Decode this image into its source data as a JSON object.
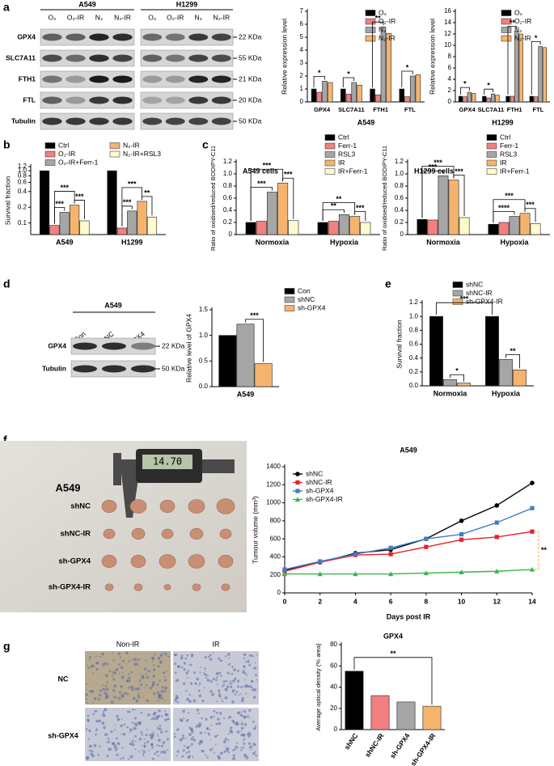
{
  "panel_labels": [
    "a",
    "b",
    "c",
    "d",
    "e",
    "f",
    "g"
  ],
  "blot_a": {
    "cell_lines": [
      "A549",
      "H1299"
    ],
    "lanes": [
      "O₂",
      "O₂-IR",
      "N₂",
      "N₂-IR"
    ],
    "rows": [
      "GPX4",
      "SLC7A11",
      "FTH1",
      "FTL",
      "Tubulin"
    ],
    "sizes": [
      "22 KDa",
      "55 KDa",
      "21 KDa",
      "20 KDa",
      "50 KDa"
    ]
  },
  "blot_d": {
    "cell_line": "A549",
    "lanes": [
      "Con",
      "shNC",
      "sh-GPX4"
    ],
    "rows": [
      "GPX4",
      "Tubulin"
    ],
    "sizes": [
      "22 KDa",
      "50 KDa"
    ]
  },
  "photo_f": {
    "caliper_reading": "14.70",
    "cell_line": "A549",
    "rows": [
      "shNC",
      "shNC-IR",
      "sh-GPX4",
      "sh-GPX4-IR"
    ]
  },
  "ihc_g": {
    "columns": [
      "Non-IR",
      "IR"
    ],
    "rows": [
      "NC",
      "sh-GPX4"
    ]
  },
  "chart_data": [
    {
      "type": "bar",
      "x_label": "A549",
      "y_label": "Relative expression level",
      "categories": [
        "GPX4",
        "SLC7A11",
        "FTH1",
        "FTL"
      ],
      "series": [
        {
          "name": "O₂",
          "color": "#000000",
          "values": [
            1,
            1,
            1,
            1
          ]
        },
        {
          "name": "O₂-IR",
          "color": "#f28080",
          "values": [
            0.75,
            0.6,
            0.55,
            0.4
          ]
        },
        {
          "name": "N₂",
          "color": "#a6a6a6",
          "values": [
            1.6,
            1.5,
            5.8,
            2.0
          ]
        },
        {
          "name": "N₂-IR",
          "color": "#f5b46e",
          "values": [
            1.5,
            1.3,
            5.3,
            2.1
          ]
        }
      ],
      "ylim": [
        0,
        7
      ],
      "yticks": [
        0,
        1,
        2,
        3,
        4,
        5,
        6,
        7
      ],
      "annotations": [
        "*",
        "*",
        "**",
        "*"
      ]
    },
    {
      "type": "bar",
      "x_label": "H1299",
      "y_label": "Relative expression level",
      "categories": [
        "GPX4",
        "SLC7A11",
        "FTH1",
        "FTL"
      ],
      "series": [
        {
          "name": "O₂",
          "color": "#000000",
          "values": [
            1,
            1,
            1,
            1
          ]
        },
        {
          "name": "O₂-IR",
          "color": "#f28080",
          "values": [
            0.9,
            0.7,
            1,
            0.9
          ]
        },
        {
          "name": "N₂",
          "color": "#a6a6a6",
          "values": [
            1.7,
            1.4,
            12.5,
            9.8
          ]
        },
        {
          "name": "N₂-IR",
          "color": "#f5b46e",
          "values": [
            1.5,
            1.2,
            12,
            9.6
          ]
        }
      ],
      "ylim": [
        0,
        16
      ],
      "yticks": [
        0,
        2,
        4,
        6,
        8,
        10,
        12,
        14,
        16
      ],
      "annotations": [
        "*",
        "*",
        "**",
        "*"
      ]
    },
    {
      "type": "bar",
      "y_label": "Survival fraction",
      "log_scale": true,
      "categories": [
        "A549",
        "H1299"
      ],
      "series": [
        {
          "name": "Ctrl",
          "color": "#000000",
          "values": [
            1.0,
            1.0
          ]
        },
        {
          "name": "O₂-IR",
          "color": "#f28080",
          "values": [
            0.09,
            0.08
          ]
        },
        {
          "name": "O₂-IR+Ferr-1",
          "color": "#a6a6a6",
          "values": [
            0.16,
            0.17
          ]
        },
        {
          "name": "N₂-IR",
          "color": "#f5b46e",
          "values": [
            0.22,
            0.26
          ]
        },
        {
          "name": "N₂-IR+RSL3",
          "color": "#fffacd",
          "values": [
            0.11,
            0.13
          ]
        }
      ],
      "ylim": [
        0.06,
        1.2
      ],
      "yticks": [
        0.1,
        0.2,
        0.4,
        0.6,
        0.8,
        {
          "value": 1,
          "label": "1.0"
        },
        1.2
      ],
      "annotations": [
        "***",
        "***",
        "***",
        "***",
        "***",
        "**"
      ]
    },
    {
      "type": "bar",
      "title": "A549 cells",
      "y_label": "Ratio of oxidised/reduced BODIPY-C11",
      "categories": [
        "Normoxia",
        "Hypoxia"
      ],
      "series": [
        {
          "name": "Ctrl",
          "color": "#000000",
          "values": [
            0.2,
            0.2
          ]
        },
        {
          "name": "Ferr-1",
          "color": "#f28080",
          "values": [
            0.22,
            0.22
          ]
        },
        {
          "name": "RSL3",
          "color": "#a6a6a6",
          "values": [
            0.7,
            0.33
          ]
        },
        {
          "name": "IR",
          "color": "#f5b46e",
          "values": [
            0.85,
            0.3
          ]
        },
        {
          "name": "IR+Ferr-1",
          "color": "#fffacd",
          "values": [
            0.23,
            0.2
          ]
        }
      ],
      "ylim": [
        0,
        1.2
      ],
      "yticks": [
        0,
        0.2,
        0.4,
        0.6,
        0.8,
        {
          "value": 1,
          "label": "1.0"
        },
        1.2
      ],
      "annotations": [
        "***",
        "***",
        "***",
        "**",
        "**",
        "***"
      ]
    },
    {
      "type": "bar",
      "title": "H1299 cells",
      "y_label": "Ratio of oxidised/reduced BODIPY-C11",
      "categories": [
        "Normoxia",
        "Hypoxia"
      ],
      "series": [
        {
          "name": "Ctrl",
          "color": "#000000",
          "values": [
            0.25,
            0.17
          ]
        },
        {
          "name": "Ferr-1",
          "color": "#f28080",
          "values": [
            0.24,
            0.2
          ]
        },
        {
          "name": "RSL3",
          "color": "#a6a6a6",
          "values": [
            0.97,
            0.3
          ]
        },
        {
          "name": "IR",
          "color": "#f5b46e",
          "values": [
            0.9,
            0.35
          ]
        },
        {
          "name": "IR+Ferr-1",
          "color": "#fffacd",
          "values": [
            0.28,
            0.18
          ]
        }
      ],
      "ylim": [
        0,
        1.2
      ],
      "yticks": [
        0,
        0.2,
        0.4,
        0.6,
        0.8,
        {
          "value": 1,
          "label": "1.0"
        },
        1.2
      ],
      "annotations": [
        "***",
        "***",
        "***",
        "****",
        "***",
        "***"
      ]
    },
    {
      "type": "bar",
      "y_label": "Relative level of GPX4",
      "categories": [
        "A549"
      ],
      "series": [
        {
          "name": "Con",
          "color": "#000000",
          "values": [
            1.0
          ]
        },
        {
          "name": "shNC",
          "color": "#a6a6a6",
          "values": [
            1.22
          ]
        },
        {
          "name": "sh-GPX4",
          "color": "#f5b46e",
          "values": [
            0.45
          ]
        }
      ],
      "ylim": [
        0,
        1.5
      ],
      "yticks": [
        {
          "value": 0,
          "label": "0.0"
        },
        0.5,
        {
          "value": 1,
          "label": "1.0"
        },
        1.5
      ],
      "annotations": [
        "***"
      ]
    },
    {
      "type": "bar",
      "y_label": "Survival fraction",
      "categories": [
        "Normoxia",
        "Hypoxia"
      ],
      "series": [
        {
          "name": "shNC",
          "color": "#000000",
          "values": [
            1.0,
            1.0
          ]
        },
        {
          "name": "shNC-IR",
          "color": "#a6a6a6",
          "values": [
            0.09,
            0.38
          ]
        },
        {
          "name": "sh-GPX4-IR",
          "color": "#f5b46e",
          "values": [
            0.04,
            0.23
          ]
        }
      ],
      "ylim": [
        0,
        1.2
      ],
      "yticks": [
        {
          "value": 0,
          "label": "0.0"
        },
        0.2,
        0.4,
        0.6,
        0.8,
        {
          "value": 1,
          "label": "1.0"
        },
        1.2
      ],
      "annotations": [
        "*",
        "***",
        "**"
      ]
    },
    {
      "type": "line",
      "title": "A549",
      "x_label": "Days post IR",
      "y_label": "Tumour volume (mm³)",
      "x": [
        0,
        2,
        4,
        6,
        8,
        10,
        12,
        14
      ],
      "series": [
        {
          "name": "shNC",
          "color": "#000000",
          "marker": "circle",
          "values": [
            250,
            340,
            440,
            480,
            600,
            800,
            970,
            1220
          ]
        },
        {
          "name": "shNC-IR",
          "color": "#e8202a",
          "marker": "square",
          "values": [
            240,
            340,
            420,
            430,
            510,
            590,
            620,
            680
          ]
        },
        {
          "name": "sh-GPX4",
          "color": "#3d7fc1",
          "marker": "square",
          "values": [
            260,
            350,
            430,
            500,
            600,
            650,
            780,
            940
          ]
        },
        {
          "name": "sh-GPX4-IR",
          "color": "#3cb44b",
          "marker": "triangle",
          "values": [
            210,
            210,
            210,
            210,
            220,
            230,
            240,
            260
          ]
        }
      ],
      "xlim": [
        0,
        14
      ],
      "xticks": [
        0,
        2,
        4,
        6,
        8,
        10,
        12,
        14
      ],
      "ylim": [
        0,
        1400
      ],
      "yticks": [
        0,
        200,
        400,
        600,
        800,
        1000,
        1200,
        1400
      ],
      "annotations": [
        "**"
      ]
    },
    {
      "type": "bar",
      "title": "GPX4",
      "y_label": "Average optical density (% area)",
      "categories": [
        "shNC",
        "shNC-IR",
        "sh-GPX4",
        "sh-GPX4-IR"
      ],
      "values": [
        55,
        32,
        26,
        22
      ],
      "colors": [
        "#000000",
        "#f28080",
        "#a6a6a6",
        "#f5b46e"
      ],
      "ylim": [
        0,
        80
      ],
      "yticks": [
        0,
        20,
        40,
        60,
        80
      ],
      "annotations": [
        "**"
      ]
    }
  ]
}
